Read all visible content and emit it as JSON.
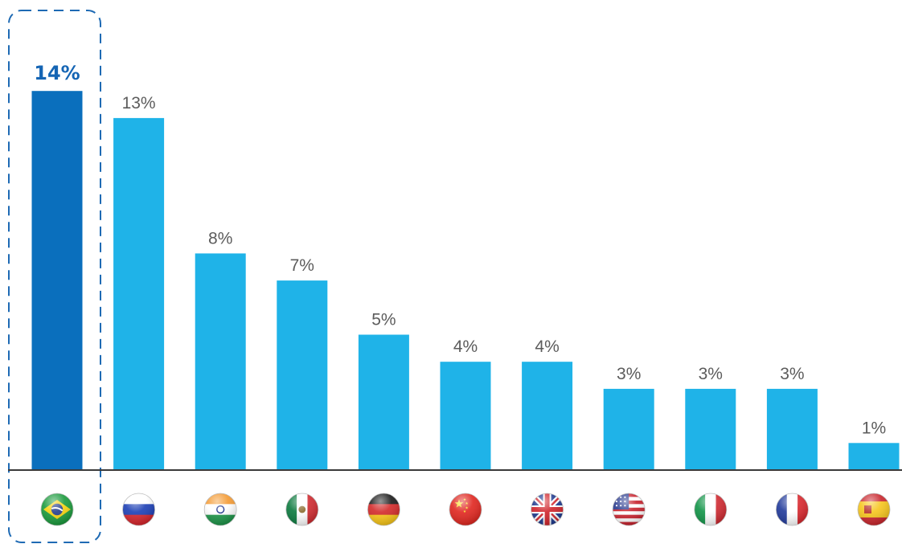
{
  "chart_data": {
    "type": "bar",
    "categories": [
      "Brazil",
      "Russia",
      "India",
      "Mexico",
      "Germany",
      "China",
      "United Kingdom",
      "United States",
      "Italy",
      "France",
      "Spain"
    ],
    "values": [
      14,
      13,
      8,
      7,
      5,
      4,
      4,
      3,
      3,
      3,
      1
    ],
    "value_labels": [
      "14%",
      "13%",
      "8%",
      "7%",
      "5%",
      "4%",
      "4%",
      "3%",
      "3%",
      "3%",
      "1%"
    ],
    "category_icons": [
      "brazil-flag-icon",
      "russia-flag-icon",
      "india-flag-icon",
      "mexico-flag-icon",
      "germany-flag-icon",
      "china-flag-icon",
      "uk-flag-icon",
      "usa-flag-icon",
      "italy-flag-icon",
      "france-flag-icon",
      "spain-flag-icon"
    ],
    "highlighted_index": 0,
    "title": "",
    "xlabel": "",
    "ylabel": "",
    "grid": false,
    "legend": "none",
    "colors": {
      "highlight_bar": "#0a6fbd",
      "bar": "#1fb3e8",
      "highlight_label": "#1565b4",
      "label": "#5c5c5c",
      "axis": "#3a3a3a",
      "highlight_box": "#1e6ab4"
    }
  }
}
